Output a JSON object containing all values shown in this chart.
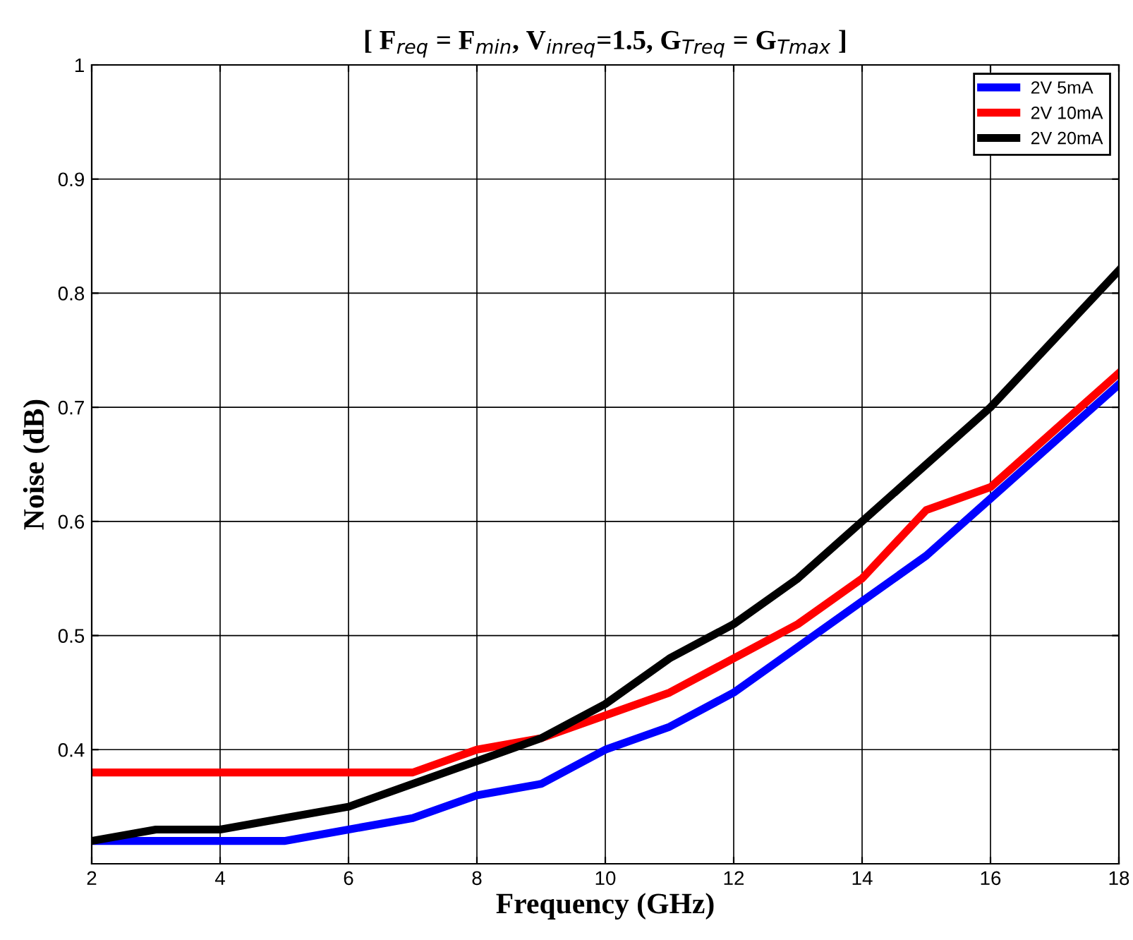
{
  "chart_data": {
    "type": "line",
    "title": "[ F$_{req}$ = F$_{min}$, V$_{inreq}$=1.5, G$_{Treq}$ = G$_{Tmax}$ ]",
    "xlabel": "Frequency (GHz)",
    "ylabel": "Noise (dB)",
    "x": [
      2,
      3,
      4,
      5,
      6,
      7,
      8,
      9,
      10,
      11,
      12,
      13,
      14,
      15,
      16,
      17,
      18
    ],
    "series": [
      {
        "name": "2V 5mA",
        "color": "#0000ff",
        "values": [
          0.32,
          0.32,
          0.32,
          0.32,
          0.33,
          0.34,
          0.36,
          0.37,
          0.4,
          0.42,
          0.45,
          0.49,
          0.53,
          0.57,
          0.62,
          0.67,
          0.72
        ]
      },
      {
        "name": "2V 10mA",
        "color": "#ff0000",
        "values": [
          0.38,
          0.38,
          0.38,
          0.38,
          0.38,
          0.38,
          0.4,
          0.41,
          0.43,
          0.45,
          0.48,
          0.51,
          0.55,
          0.61,
          0.63,
          0.68,
          0.73
        ]
      },
      {
        "name": "2V 20mA",
        "color": "#000000",
        "values": [
          0.32,
          0.33,
          0.33,
          0.34,
          0.35,
          0.37,
          0.39,
          0.41,
          0.44,
          0.48,
          0.51,
          0.55,
          0.6,
          0.65,
          0.7,
          0.76,
          0.82
        ]
      }
    ],
    "xlim": [
      2,
      18
    ],
    "ylim": [
      0.3,
      1
    ],
    "xticks": [
      2,
      4,
      6,
      8,
      10,
      12,
      14,
      16,
      18
    ],
    "yticks": [
      0.4,
      0.5,
      0.6,
      0.7,
      0.8,
      0.9,
      1
    ],
    "grid": true,
    "legend": "top right",
    "marker": "none",
    "line_style": "solid"
  }
}
